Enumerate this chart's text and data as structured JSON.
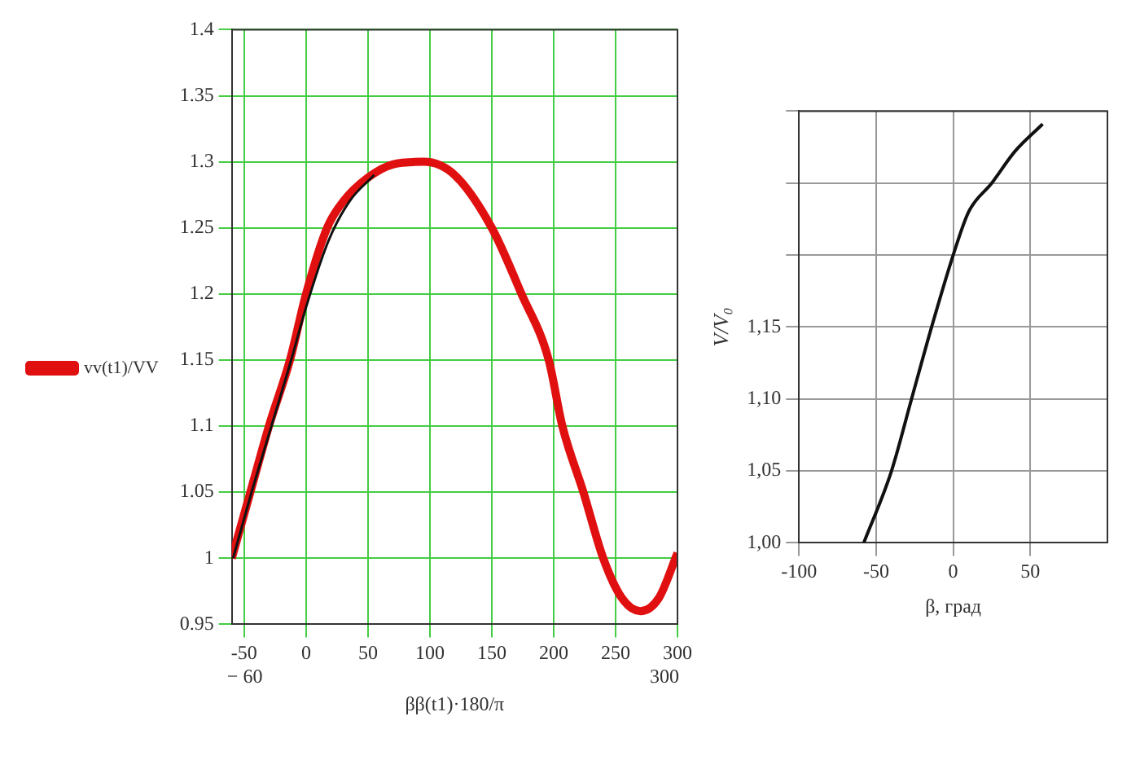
{
  "chart_data": [
    {
      "type": "line",
      "xlabel": "ββ(t1)·180/π",
      "legend": "left",
      "grid": true,
      "xlim": [
        -60,
        300
      ],
      "ylim": [
        0.95,
        1.4
      ],
      "xticks": [
        -50,
        0,
        50,
        100,
        150,
        200,
        250,
        300
      ],
      "yticks": [
        0.95,
        1,
        1.05,
        1.1,
        1.15,
        1.2,
        1.25,
        1.3,
        1.35,
        1.4
      ],
      "annotations": [
        "− 60",
        "300"
      ],
      "series": [
        {
          "name": "vv(t1)/VV",
          "color": "#e01010",
          "x": [
            -60,
            -45,
            -30,
            -13,
            0,
            17,
            30,
            50,
            70,
            95,
            120,
            150,
            174,
            196,
            207,
            224,
            240,
            255,
            270,
            285,
            300
          ],
          "values": [
            1.0,
            1.05,
            1.1,
            1.15,
            1.2,
            1.25,
            1.27,
            1.288,
            1.298,
            1.3,
            1.29,
            1.25,
            1.2,
            1.15,
            1.1,
            1.05,
            1.0,
            0.97,
            0.96,
            0.97,
            1.004
          ]
        },
        {
          "color": "#111111",
          "x": [
            -59,
            -44,
            -28,
            -12,
            0,
            18,
            35,
            55
          ],
          "values": [
            1.0,
            1.05,
            1.1,
            1.15,
            1.19,
            1.24,
            1.27,
            1.29
          ]
        }
      ]
    },
    {
      "type": "line",
      "xlabel": "β, град",
      "ylabel": "V/V₀",
      "grid": true,
      "xlim": [
        -100,
        100
      ],
      "ylim": [
        1.0,
        1.3
      ],
      "xticks": [
        -100,
        -50,
        0,
        50
      ],
      "yticks": [
        {
          "value": 1.0,
          "label": "1,00"
        },
        {
          "value": 1.05,
          "label": "1,05"
        },
        {
          "value": 1.1,
          "label": "1,10"
        },
        {
          "value": 1.15,
          "label": "1,15"
        },
        {
          "value": 1.2,
          "label": null
        },
        {
          "value": 1.25,
          "label": null
        },
        {
          "value": 1.3,
          "label": null
        }
      ],
      "series": [
        {
          "color": "#111111",
          "x": [
            -58,
            -40,
            -27,
            -14,
            0,
            10,
            25,
            40,
            58
          ],
          "values": [
            1.0,
            1.05,
            1.1,
            1.15,
            1.2,
            1.23,
            1.25,
            1.272,
            1.291
          ]
        }
      ]
    }
  ]
}
